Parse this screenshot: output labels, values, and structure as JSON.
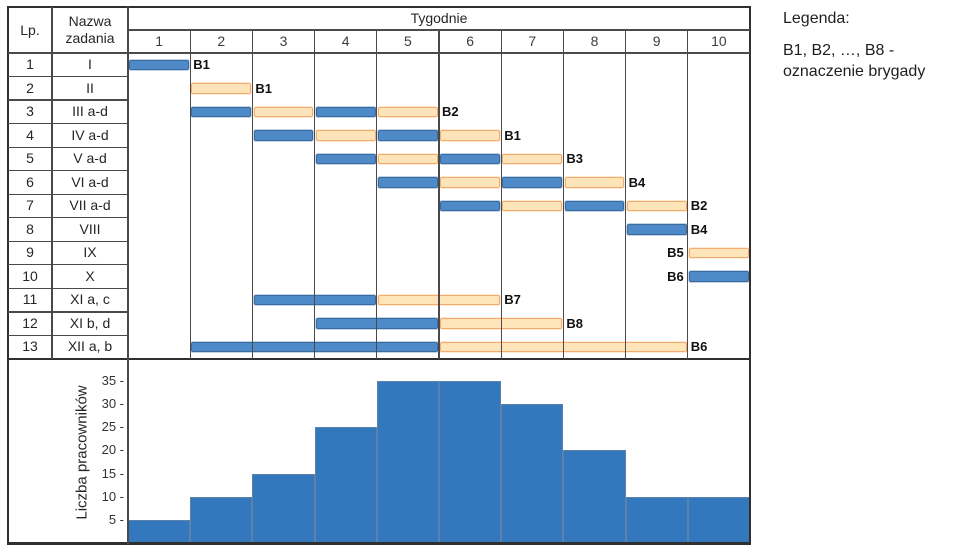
{
  "colors": {
    "blue_fill": "#4E8AC8",
    "blue_border": "#3A6B9C",
    "orange_fill": "#FDE5B9",
    "orange_border": "#F3AB70",
    "hist_fill": "#3377BD",
    "grid": "#4A4A4A",
    "outer": "#303030",
    "text": "#262626"
  },
  "legend": {
    "title": "Legenda:",
    "line1": "B1, B2, …, B8 -",
    "line2": "oznaczenie brygady"
  },
  "chart_data": [
    {
      "type": "table",
      "name": "gantt-schedule",
      "header": {
        "lp": "Lp.",
        "task": "Nazwa zadania",
        "weeks_title": "Tygodnie",
        "weeks": [
          "1",
          "2",
          "3",
          "4",
          "5",
          "6",
          "7",
          "8",
          "9",
          "10"
        ]
      },
      "rows": [
        {
          "lp": "1",
          "task": "I",
          "bars": [
            {
              "s": 1,
              "e": 1,
              "c": "blue"
            }
          ],
          "label": "B1",
          "label_week": 2,
          "label_side": "after"
        },
        {
          "lp": "2",
          "task": "II",
          "bars": [
            {
              "s": 2,
              "e": 2,
              "c": "orange"
            }
          ],
          "label": "B1",
          "label_week": 3,
          "label_side": "after"
        },
        {
          "lp": "3",
          "task": "III a-d",
          "bars": [
            {
              "s": 2,
              "e": 2,
              "c": "blue"
            },
            {
              "s": 3,
              "e": 3,
              "c": "orange"
            },
            {
              "s": 4,
              "e": 4,
              "c": "blue"
            },
            {
              "s": 5,
              "e": 5,
              "c": "orange"
            }
          ],
          "label": "B2",
          "label_week": 6,
          "label_side": "after"
        },
        {
          "lp": "4",
          "task": "IV a-d",
          "bars": [
            {
              "s": 3,
              "e": 3,
              "c": "blue"
            },
            {
              "s": 4,
              "e": 4,
              "c": "orange"
            },
            {
              "s": 5,
              "e": 5,
              "c": "blue"
            },
            {
              "s": 6,
              "e": 6,
              "c": "orange"
            }
          ],
          "label": "B1",
          "label_week": 7,
          "label_side": "after"
        },
        {
          "lp": "5",
          "task": "V a-d",
          "bars": [
            {
              "s": 4,
              "e": 4,
              "c": "blue"
            },
            {
              "s": 5,
              "e": 5,
              "c": "orange"
            },
            {
              "s": 6,
              "e": 6,
              "c": "blue"
            },
            {
              "s": 7,
              "e": 7,
              "c": "orange"
            }
          ],
          "label": "B3",
          "label_week": 8,
          "label_side": "after"
        },
        {
          "lp": "6",
          "task": "VI a-d",
          "bars": [
            {
              "s": 5,
              "e": 5,
              "c": "blue"
            },
            {
              "s": 6,
              "e": 6,
              "c": "orange"
            },
            {
              "s": 7,
              "e": 7,
              "c": "blue"
            },
            {
              "s": 8,
              "e": 8,
              "c": "orange"
            }
          ],
          "label": "B4",
          "label_week": 9,
          "label_side": "after"
        },
        {
          "lp": "7",
          "task": "VII a-d",
          "bars": [
            {
              "s": 6,
              "e": 6,
              "c": "blue"
            },
            {
              "s": 7,
              "e": 7,
              "c": "orange"
            },
            {
              "s": 8,
              "e": 8,
              "c": "blue"
            },
            {
              "s": 9,
              "e": 9,
              "c": "orange"
            }
          ],
          "label": "B2",
          "label_week": 10,
          "label_side": "after"
        },
        {
          "lp": "8",
          "task": "VIII",
          "bars": [
            {
              "s": 9,
              "e": 9,
              "c": "blue"
            }
          ],
          "label": "B4",
          "label_week": 10,
          "label_side": "after"
        },
        {
          "lp": "9",
          "task": "IX",
          "bars": [
            {
              "s": 10,
              "e": 10,
              "c": "orange"
            }
          ],
          "label": "B5",
          "label_week": 10,
          "label_side": "before"
        },
        {
          "lp": "10",
          "task": "X",
          "bars": [
            {
              "s": 10,
              "e": 10,
              "c": "blue"
            }
          ],
          "label": "B6",
          "label_week": 10,
          "label_side": "before"
        },
        {
          "lp": "11",
          "task": "XI a, c",
          "bars": [
            {
              "s": 3,
              "e": 4,
              "c": "blue"
            },
            {
              "s": 5,
              "e": 6,
              "c": "orange"
            }
          ],
          "label": "B7",
          "label_week": 7,
          "label_side": "after"
        },
        {
          "lp": "12",
          "task": "XI b, d",
          "bars": [
            {
              "s": 4,
              "e": 5,
              "c": "blue"
            },
            {
              "s": 6,
              "e": 7,
              "c": "orange"
            }
          ],
          "label": "B8",
          "label_week": 8,
          "label_side": "after"
        },
        {
          "lp": "13",
          "task": "XII a, b",
          "bars": [
            {
              "s": 2,
              "e": 5,
              "c": "blue"
            },
            {
              "s": 6,
              "e": 9,
              "c": "orange"
            }
          ],
          "label": "B6",
          "label_week": 10,
          "label_side": "after"
        }
      ]
    },
    {
      "type": "bar",
      "name": "workers-per-week",
      "categories": [
        "1",
        "2",
        "3",
        "4",
        "5",
        "6",
        "7",
        "8",
        "9",
        "10"
      ],
      "values": [
        5,
        10,
        15,
        25,
        35,
        35,
        30,
        20,
        10,
        10
      ],
      "title": "",
      "xlabel": "",
      "ylabel": "Liczba pracowników",
      "yticks": [
        5,
        10,
        15,
        20,
        25,
        30,
        35
      ],
      "ytick_labels": [
        "5 -",
        "10 -",
        "15 -",
        "20 -",
        "25 -",
        "30 -",
        "35 -"
      ],
      "ylim": [
        0,
        40
      ],
      "grid": false,
      "legend_position": "none"
    }
  ]
}
